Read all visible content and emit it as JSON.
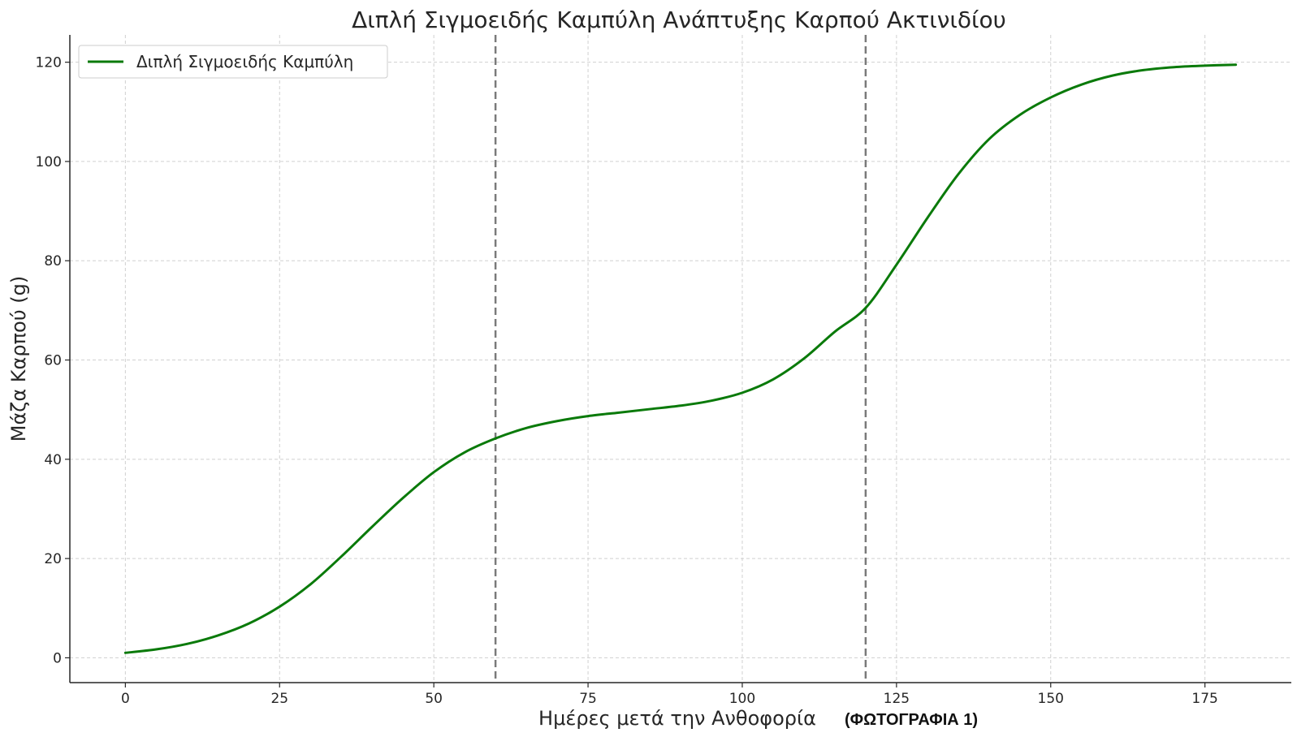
{
  "chart_data": {
    "type": "line",
    "title": "Διπλή Σιγμοειδής Καμπύλη Ανάπτυξης Καρπού Ακτινιδίου",
    "xlabel": "Ημέρες μετά την Ανθοφορία",
    "ylabel": "Μάζα Καρπού (g)",
    "annotation": "(ΦΩΤΟΓΡΑΦΙΑ 1)",
    "xlim": [
      -9,
      189
    ],
    "ylim": [
      -5,
      125.5
    ],
    "x_ticks": [
      0,
      25,
      50,
      75,
      100,
      125,
      150,
      175
    ],
    "y_ticks": [
      0,
      20,
      40,
      60,
      80,
      100,
      120
    ],
    "grid": true,
    "legend_position": "top-left",
    "vertical_lines": [
      60,
      120
    ],
    "series": [
      {
        "name": "Διπλή Σιγμοειδής Καμπύλη",
        "color": "#0a7a0a",
        "x": [
          0,
          5,
          10,
          15,
          20,
          25,
          30,
          35,
          40,
          45,
          50,
          55,
          60,
          65,
          70,
          75,
          80,
          85,
          90,
          95,
          100,
          105,
          110,
          115,
          120,
          125,
          130,
          135,
          140,
          145,
          150,
          155,
          160,
          165,
          170,
          175,
          180
        ],
        "values": [
          1,
          1.7,
          2.8,
          4.5,
          6.9,
          10.3,
          14.8,
          20.4,
          26.4,
          32.2,
          37.4,
          41.4,
          44.2,
          46.3,
          47.7,
          48.7,
          49.4,
          50.1,
          50.8,
          51.8,
          53.4,
          56.1,
          60.3,
          65.7,
          70.5,
          79.2,
          88.6,
          97.4,
          104.5,
          109.4,
          112.9,
          115.5,
          117.3,
          118.4,
          119,
          119.3,
          119.5
        ]
      }
    ]
  }
}
